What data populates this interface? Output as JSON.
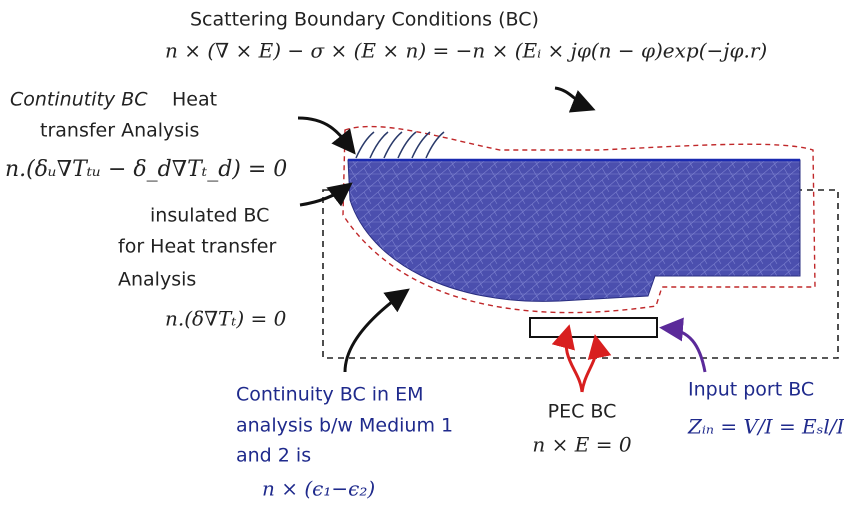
{
  "scattering": {
    "title": "Scattering Boundary Conditions (BC)",
    "equation": "n × (∇ × E) − σ × (E × n) = −n × (Eᵢ × jφ(n − φ)exp(−jφ.r)"
  },
  "continuity_heat": {
    "label_italic": "Continutity BC",
    "label_rest": "Heat",
    "line2": "transfer Analysis",
    "equation": "n.(δᵤ∇Tₜᵤ − δ_d∇Tₜ_d) = 0"
  },
  "insulated": {
    "lines": [
      "insulated BC",
      "for Heat transfer",
      "Analysis"
    ],
    "equation": "n.(δ∇Tₜ) = 0"
  },
  "continuity_em": {
    "lines": [
      "Continuity BC  in EM",
      "analysis b/w Medium 1",
      "and 2 is"
    ],
    "equation": "n × (ϵ₁−ϵ₂)"
  },
  "pec": {
    "label": "PEC BC",
    "equation": "n × E = 0"
  },
  "input_port": {
    "label": "Input port BC",
    "equation": "Zᵢₙ = V/I = Eₛl/I"
  }
}
